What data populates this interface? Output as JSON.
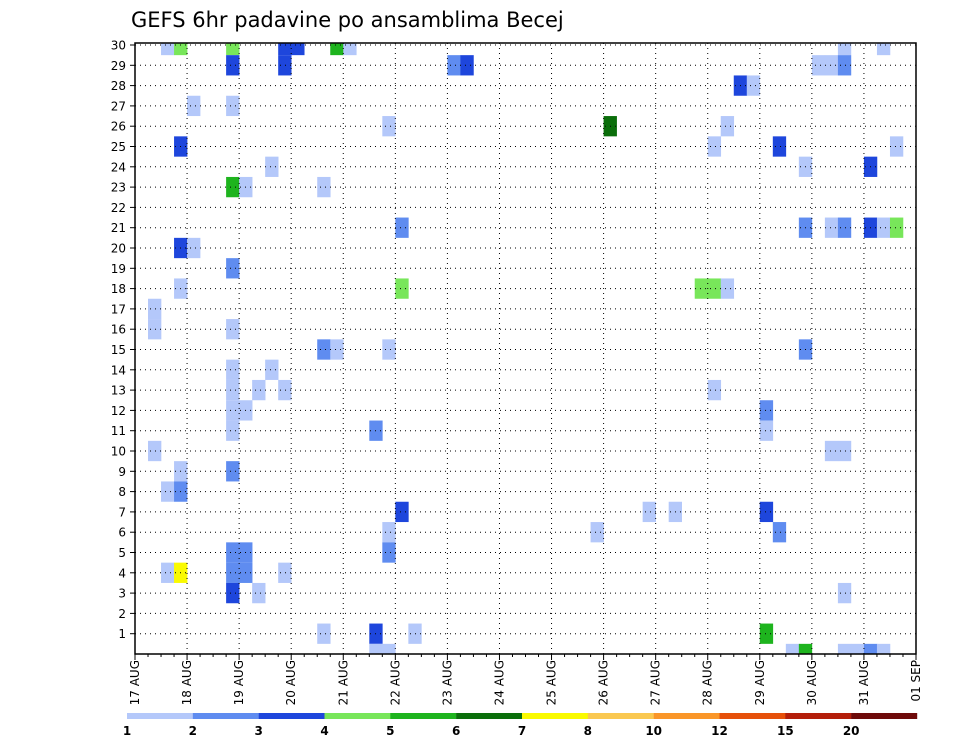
{
  "chart_data": {
    "type": "heatmap",
    "title": "GEFS 6hr padavine po ansamblima Becej",
    "xlabel": "",
    "ylabel": "",
    "x_ticks": [
      "17 AUG",
      "18 AUG",
      "19 AUG",
      "20 AUG",
      "21 AUG",
      "22 AUG",
      "23 AUG",
      "24 AUG",
      "25 AUG",
      "26 AUG",
      "27 AUG",
      "28 AUG",
      "29 AUG",
      "30 AUG",
      "31 AUG",
      "01 SEP"
    ],
    "y_ticks": [
      "1",
      "2",
      "3",
      "4",
      "5",
      "6",
      "7",
      "8",
      "9",
      "10",
      "11",
      "12",
      "13",
      "14",
      "15",
      "16",
      "17",
      "18",
      "19",
      "20",
      "21",
      "22",
      "23",
      "24",
      "25",
      "26",
      "27",
      "28",
      "29",
      "30"
    ],
    "x_step_unit": "6hr step",
    "grid": true,
    "colorbar": {
      "labels": [
        "1",
        "2",
        "3",
        "4",
        "5",
        "6",
        "7",
        "8",
        "10",
        "12",
        "15",
        "20"
      ],
      "colors": [
        "#b4c8fa",
        "#5f8cf0",
        "#1e46dc",
        "#78e65a",
        "#1eb41e",
        "#0a6e0a",
        "#fafa00",
        "#fac850",
        "#fa9628",
        "#e6500a",
        "#b41e0a",
        "#6e0a0a"
      ]
    },
    "cells": [
      {
        "t": 1,
        "m": 17,
        "c": 0
      },
      {
        "t": 1,
        "m": 10,
        "c": 0
      },
      {
        "t": 1,
        "m": 16,
        "c": 0
      },
      {
        "t": 2,
        "m": 30,
        "c": 0
      },
      {
        "t": 2,
        "m": 8,
        "c": 0
      },
      {
        "t": 2,
        "m": 4,
        "c": 0
      },
      {
        "t": 3,
        "m": 30,
        "c": 3
      },
      {
        "t": 3,
        "m": 25,
        "c": 2
      },
      {
        "t": 3,
        "m": 20,
        "c": 2
      },
      {
        "t": 3,
        "m": 18,
        "c": 0
      },
      {
        "t": 3,
        "m": 9,
        "c": 0
      },
      {
        "t": 3,
        "m": 8,
        "c": 1
      },
      {
        "t": 3,
        "m": 4,
        "c": 6
      },
      {
        "t": 4,
        "m": 27,
        "c": 0
      },
      {
        "t": 4,
        "m": 20,
        "c": 0
      },
      {
        "t": 7,
        "m": 30,
        "c": 3
      },
      {
        "t": 7,
        "m": 29,
        "c": 2
      },
      {
        "t": 7,
        "m": 27,
        "c": 0
      },
      {
        "t": 7,
        "m": 23,
        "c": 4
      },
      {
        "t": 7,
        "m": 19,
        "c": 1
      },
      {
        "t": 7,
        "m": 16,
        "c": 0
      },
      {
        "t": 7,
        "m": 14,
        "c": 0
      },
      {
        "t": 7,
        "m": 13,
        "c": 0
      },
      {
        "t": 7,
        "m": 12,
        "c": 0
      },
      {
        "t": 7,
        "m": 11,
        "c": 0
      },
      {
        "t": 7,
        "m": 9,
        "c": 1
      },
      {
        "t": 7,
        "m": 5,
        "c": 1
      },
      {
        "t": 7,
        "m": 4,
        "c": 1
      },
      {
        "t": 7,
        "m": 3,
        "c": 2
      },
      {
        "t": 8,
        "m": 23,
        "c": 0
      },
      {
        "t": 8,
        "m": 12,
        "c": 0
      },
      {
        "t": 8,
        "m": 5,
        "c": 1
      },
      {
        "t": 8,
        "m": 4,
        "c": 1
      },
      {
        "t": 9,
        "m": 13,
        "c": 0
      },
      {
        "t": 9,
        "m": 3,
        "c": 0
      },
      {
        "t": 10,
        "m": 24,
        "c": 0
      },
      {
        "t": 10,
        "m": 14,
        "c": 0
      },
      {
        "t": 11,
        "m": 30,
        "c": 2
      },
      {
        "t": 11,
        "m": 29,
        "c": 2
      },
      {
        "t": 11,
        "m": 13,
        "c": 0
      },
      {
        "t": 11,
        "m": 4,
        "c": 0
      },
      {
        "t": 12,
        "m": 30,
        "c": 2
      },
      {
        "t": 14,
        "m": 23,
        "c": 0
      },
      {
        "t": 14,
        "m": 15,
        "c": 1
      },
      {
        "t": 14,
        "m": 1,
        "c": 0
      },
      {
        "t": 15,
        "m": 30,
        "c": 4
      },
      {
        "t": 15,
        "m": 15,
        "c": 0
      },
      {
        "t": 16,
        "m": 30,
        "c": 0
      },
      {
        "t": 18,
        "m": 11,
        "c": 1
      },
      {
        "t": 18,
        "m": 1,
        "c": 2
      },
      {
        "t": 18,
        "m": 0,
        "c": 0
      },
      {
        "t": 19,
        "m": 26,
        "c": 0
      },
      {
        "t": 19,
        "m": 15,
        "c": 0
      },
      {
        "t": 19,
        "m": 6,
        "c": 0
      },
      {
        "t": 19,
        "m": 5,
        "c": 1
      },
      {
        "t": 19,
        "m": 0,
        "c": 0
      },
      {
        "t": 20,
        "m": 21,
        "c": 1
      },
      {
        "t": 20,
        "m": 18,
        "c": 3
      },
      {
        "t": 20,
        "m": 7,
        "c": 2
      },
      {
        "t": 21,
        "m": 1,
        "c": 0
      },
      {
        "t": 24,
        "m": 29,
        "c": 1
      },
      {
        "t": 25,
        "m": 29,
        "c": 2
      },
      {
        "t": 35,
        "m": 6,
        "c": 0
      },
      {
        "t": 36,
        "m": 26,
        "c": 5
      },
      {
        "t": 39,
        "m": 7,
        "c": 0
      },
      {
        "t": 41,
        "m": 7,
        "c": 0
      },
      {
        "t": 43,
        "m": 18,
        "c": 3
      },
      {
        "t": 44,
        "m": 25,
        "c": 0
      },
      {
        "t": 44,
        "m": 18,
        "c": 3
      },
      {
        "t": 44,
        "m": 13,
        "c": 0
      },
      {
        "t": 45,
        "m": 26,
        "c": 0
      },
      {
        "t": 45,
        "m": 18,
        "c": 0
      },
      {
        "t": 46,
        "m": 28,
        "c": 2
      },
      {
        "t": 47,
        "m": 28,
        "c": 0
      },
      {
        "t": 48,
        "m": 12,
        "c": 1
      },
      {
        "t": 48,
        "m": 11,
        "c": 0
      },
      {
        "t": 48,
        "m": 7,
        "c": 2
      },
      {
        "t": 48,
        "m": 1,
        "c": 4
      },
      {
        "t": 49,
        "m": 25,
        "c": 2
      },
      {
        "t": 49,
        "m": 6,
        "c": 1
      },
      {
        "t": 50,
        "m": 0,
        "c": 0
      },
      {
        "t": 51,
        "m": 24,
        "c": 0
      },
      {
        "t": 51,
        "m": 21,
        "c": 1
      },
      {
        "t": 51,
        "m": 15,
        "c": 1
      },
      {
        "t": 51,
        "m": 0,
        "c": 4
      },
      {
        "t": 52,
        "m": 29,
        "c": 0
      },
      {
        "t": 53,
        "m": 29,
        "c": 0
      },
      {
        "t": 53,
        "m": 21,
        "c": 0
      },
      {
        "t": 53,
        "m": 10,
        "c": 0
      },
      {
        "t": 54,
        "m": 30,
        "c": 0
      },
      {
        "t": 54,
        "m": 29,
        "c": 1
      },
      {
        "t": 54,
        "m": 21,
        "c": 1
      },
      {
        "t": 54,
        "m": 10,
        "c": 0
      },
      {
        "t": 54,
        "m": 3,
        "c": 0
      },
      {
        "t": 54,
        "m": 0,
        "c": 0
      },
      {
        "t": 55,
        "m": 0,
        "c": 0
      },
      {
        "t": 56,
        "m": 24,
        "c": 2
      },
      {
        "t": 56,
        "m": 21,
        "c": 2
      },
      {
        "t": 56,
        "m": 0,
        "c": 1
      },
      {
        "t": 57,
        "m": 30,
        "c": 0
      },
      {
        "t": 57,
        "m": 21,
        "c": 0
      },
      {
        "t": 57,
        "m": 0,
        "c": 0
      },
      {
        "t": 58,
        "m": 25,
        "c": 0
      },
      {
        "t": 58,
        "m": 21,
        "c": 3
      }
    ]
  }
}
